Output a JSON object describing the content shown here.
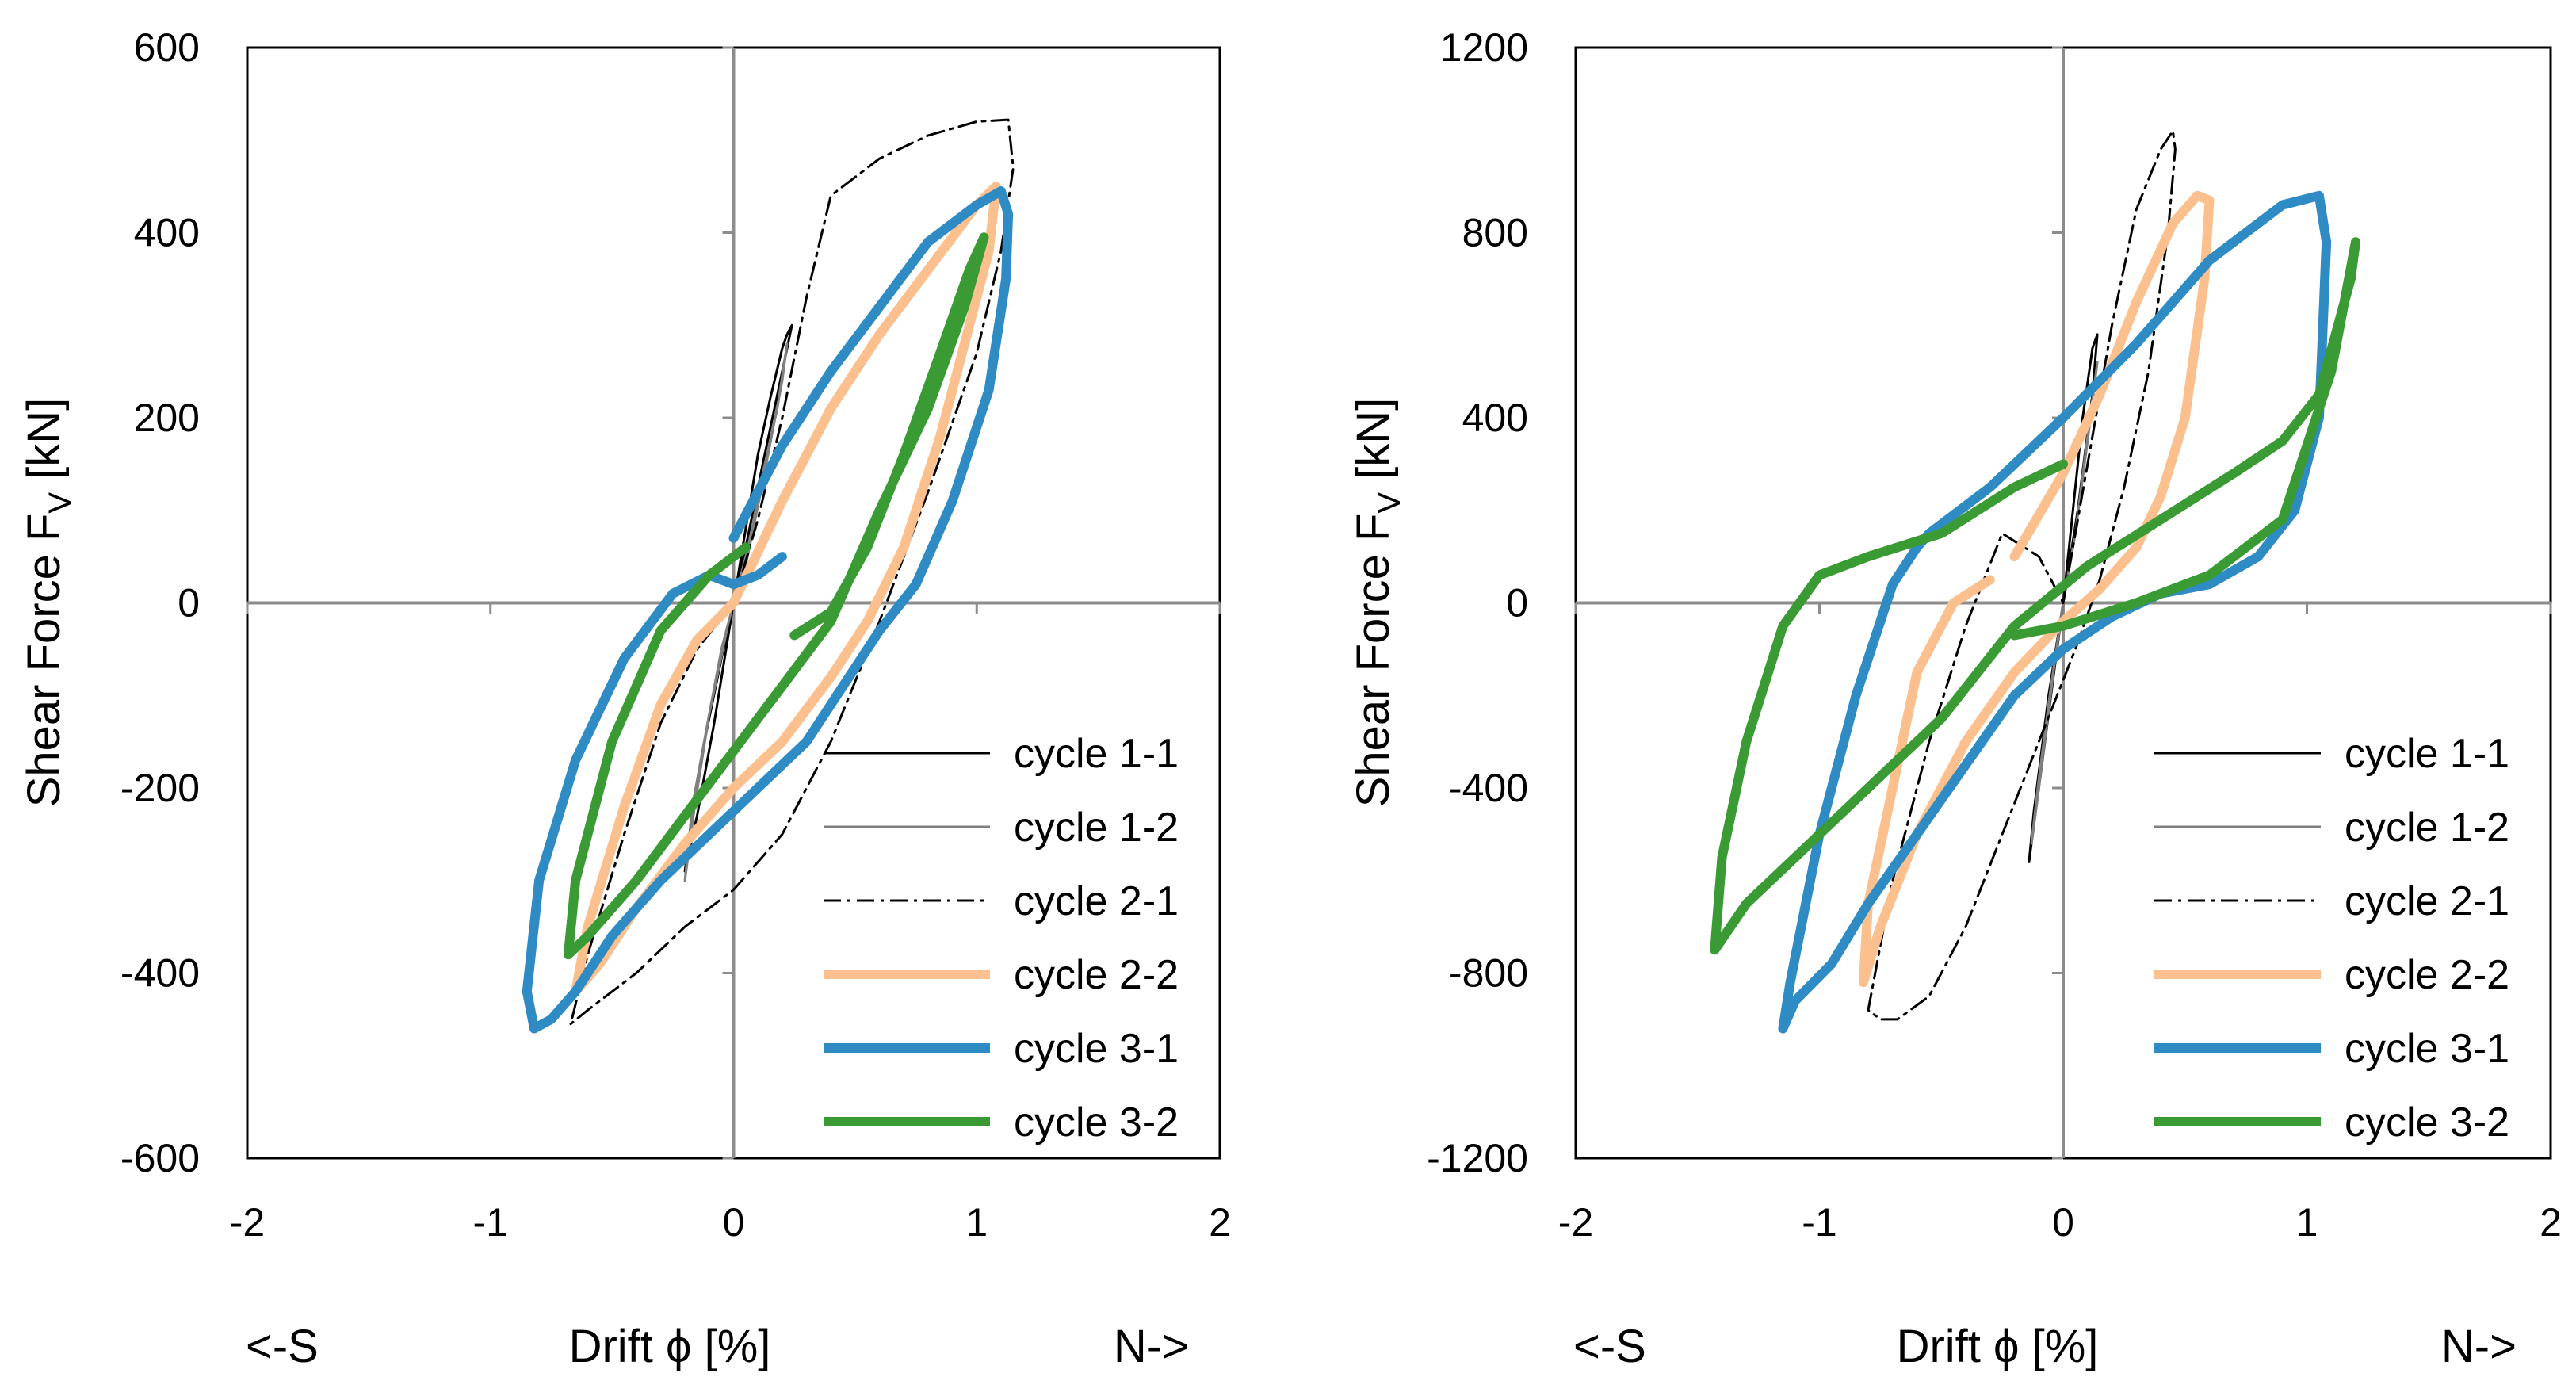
{
  "chart_data": [
    {
      "type": "line",
      "title": "",
      "xlabel": "Drift ϕ [%]",
      "ylabel": "Shear Force F",
      "ylabel_sub": "V",
      "ylabel_unit": " [kN]",
      "direction_left": "<-S",
      "direction_right": "N->",
      "xlim": [
        -2,
        2
      ],
      "ylim": [
        -600,
        600
      ],
      "xticks": [
        "-2",
        "-1",
        "0",
        "1",
        "2"
      ],
      "yticks": [
        "600",
        "400",
        "200",
        "0",
        "-200",
        "-400",
        "-600"
      ],
      "legend_position": "bottom-right",
      "series": [
        {
          "name": "cycle 1-1",
          "color": "#000000",
          "style": "solid-thin",
          "x": [
            0,
            0.05,
            0.1,
            0.15,
            0.2,
            0.22,
            0.24,
            0.2,
            0.12,
            0.05,
            0,
            -0.05,
            -0.12,
            -0.18,
            -0.2,
            -0.15,
            -0.08,
            0
          ],
          "y": [
            0,
            80,
            160,
            220,
            275,
            290,
            300,
            250,
            150,
            60,
            0,
            -60,
            -150,
            -250,
            -290,
            -230,
            -130,
            0
          ]
        },
        {
          "name": "cycle 1-2",
          "color": "#808080",
          "style": "solid-thin",
          "x": [
            0,
            0.06,
            0.12,
            0.18,
            0.22,
            0.2,
            0.12,
            0.05,
            0,
            -0.05,
            -0.1,
            -0.16,
            -0.2,
            -0.17,
            -0.1,
            -0.02,
            0
          ],
          "y": [
            0,
            60,
            140,
            210,
            280,
            240,
            130,
            40,
            0,
            -50,
            -120,
            -220,
            -300,
            -220,
            -120,
            -20,
            0
          ]
        },
        {
          "name": "cycle 2-1",
          "color": "#000000",
          "style": "dashdot-thin",
          "x": [
            0,
            0.1,
            0.2,
            0.3,
            0.4,
            0.6,
            0.8,
            1.0,
            1.13,
            1.15,
            1.1,
            1.0,
            0.8,
            0.6,
            0.4,
            0.2,
            0,
            -0.2,
            -0.4,
            -0.6,
            -0.67,
            -0.6,
            -0.45,
            -0.3,
            -0.15,
            0
          ],
          "y": [
            0,
            90,
            200,
            330,
            440,
            480,
            505,
            520,
            522,
            470,
            380,
            270,
            120,
            -20,
            -150,
            -250,
            -310,
            -350,
            -400,
            -440,
            -455,
            -380,
            -250,
            -130,
            -50,
            0
          ]
        },
        {
          "name": "cycle 2-2",
          "color": "#FBC08E",
          "style": "solid-thick",
          "x": [
            0,
            0.2,
            0.4,
            0.6,
            0.8,
            1.0,
            1.08,
            1.05,
            0.95,
            0.85,
            0.7,
            0.55,
            0.4,
            0.2,
            0,
            -0.2,
            -0.4,
            -0.55,
            -0.65,
            -0.6,
            -0.45,
            -0.3,
            -0.15,
            0
          ],
          "y": [
            0,
            110,
            210,
            290,
            360,
            430,
            450,
            380,
            280,
            180,
            60,
            -20,
            -80,
            -150,
            -200,
            -260,
            -330,
            -390,
            -420,
            -350,
            -220,
            -110,
            -40,
            0
          ]
        },
        {
          "name": "cycle 3-1",
          "color": "#2E8BC4",
          "style": "solid-thick",
          "x": [
            0,
            0.2,
            0.4,
            0.6,
            0.8,
            1.0,
            1.1,
            1.13,
            1.12,
            1.05,
            0.9,
            0.75,
            0.6,
            0.45,
            0.3,
            0.1,
            -0.1,
            -0.3,
            -0.5,
            -0.65,
            -0.75,
            -0.82,
            -0.85,
            -0.8,
            -0.65,
            -0.45,
            -0.25,
            -0.1,
            0,
            0.1,
            0.2
          ],
          "y": [
            70,
            170,
            250,
            320,
            390,
            430,
            445,
            420,
            350,
            230,
            110,
            20,
            -30,
            -90,
            -150,
            -200,
            -250,
            -300,
            -360,
            -420,
            -450,
            -460,
            -420,
            -300,
            -170,
            -60,
            10,
            30,
            20,
            30,
            50
          ]
        },
        {
          "name": "cycle 3-2",
          "color": "#3A9B34",
          "style": "solid-thick",
          "x": [
            0.25,
            0.4,
            0.55,
            0.7,
            0.85,
            0.97,
            1.03,
            0.95,
            0.8,
            0.6,
            0.4,
            0.2,
            0,
            -0.2,
            -0.4,
            -0.6,
            -0.68,
            -0.65,
            -0.5,
            -0.3,
            -0.1,
            0.05
          ],
          "y": [
            -35,
            -10,
            60,
            160,
            270,
            360,
            395,
            320,
            210,
            100,
            -20,
            -90,
            -160,
            -230,
            -300,
            -360,
            -380,
            -300,
            -150,
            -30,
            30,
            60
          ]
        }
      ]
    },
    {
      "type": "line",
      "title": "",
      "xlabel": "Drift ϕ [%]",
      "ylabel": "Shear Force F",
      "ylabel_sub": "V",
      "ylabel_unit": " [kN]",
      "direction_left": "<-S",
      "direction_right": "N->",
      "xlim": [
        -2,
        2
      ],
      "ylim": [
        -1200,
        1200
      ],
      "xticks": [
        "-2",
        "-1",
        "0",
        "1",
        "2"
      ],
      "yticks": [
        "1200",
        "800",
        "400",
        "0",
        "-400",
        "-800",
        "-1200"
      ],
      "legend_position": "bottom-right",
      "series": [
        {
          "name": "cycle 1-1",
          "color": "#000000",
          "style": "solid-thin",
          "x": [
            0,
            0.04,
            0.08,
            0.12,
            0.14,
            0.12,
            0.06,
            0,
            -0.05,
            -0.1,
            -0.14,
            -0.12,
            -0.06,
            0
          ],
          "y": [
            0,
            200,
            400,
            550,
            580,
            450,
            200,
            0,
            -200,
            -400,
            -560,
            -450,
            -200,
            0
          ]
        },
        {
          "name": "cycle 1-2",
          "color": "#808080",
          "style": "solid-thin",
          "x": [
            0,
            0.05,
            0.1,
            0.14,
            0.11,
            0.05,
            0,
            -0.05,
            -0.1,
            -0.13,
            -0.1,
            -0.04,
            0
          ],
          "y": [
            0,
            150,
            350,
            520,
            400,
            150,
            0,
            -180,
            -380,
            -520,
            -400,
            -150,
            0
          ]
        },
        {
          "name": "cycle 2-1",
          "color": "#000000",
          "style": "dashdot-thin",
          "x": [
            0,
            0.1,
            0.2,
            0.3,
            0.4,
            0.45,
            0.46,
            0.43,
            0.35,
            0.25,
            0.15,
            0.05,
            -0.1,
            -0.25,
            -0.4,
            -0.55,
            -0.68,
            -0.75,
            -0.8,
            -0.7,
            -0.55,
            -0.4,
            -0.25,
            -0.1,
            0
          ],
          "y": [
            0,
            300,
            600,
            850,
            980,
            1020,
            980,
            800,
            500,
            250,
            50,
            -100,
            -300,
            -500,
            -700,
            -850,
            -900,
            -900,
            -880,
            -600,
            -300,
            -50,
            150,
            100,
            0
          ]
        },
        {
          "name": "cycle 2-2",
          "color": "#FBC08E",
          "style": "solid-thick",
          "x": [
            -0.2,
            0,
            0.15,
            0.3,
            0.45,
            0.55,
            0.6,
            0.58,
            0.5,
            0.4,
            0.3,
            0.15,
            0,
            -0.2,
            -0.4,
            -0.6,
            -0.75,
            -0.82,
            -0.8,
            -0.7,
            -0.6,
            -0.45,
            -0.3
          ],
          "y": [
            100,
            280,
            450,
            650,
            820,
            880,
            870,
            700,
            400,
            230,
            120,
            30,
            -40,
            -150,
            -300,
            -500,
            -700,
            -820,
            -650,
            -400,
            -150,
            0,
            50
          ]
        },
        {
          "name": "cycle 3-1",
          "color": "#2E8BC4",
          "style": "solid-thick",
          "x": [
            -0.55,
            -0.3,
            0,
            0.3,
            0.6,
            0.9,
            1.05,
            1.08,
            1.05,
            0.95,
            0.8,
            0.6,
            0.4,
            0.2,
            0,
            -0.2,
            -0.4,
            -0.6,
            -0.8,
            -0.95,
            -1.1,
            -1.15,
            -1.12,
            -1.0,
            -0.85,
            -0.7,
            -0.6,
            -0.55
          ],
          "y": [
            150,
            250,
            400,
            560,
            740,
            860,
            880,
            780,
            400,
            200,
            100,
            40,
            20,
            -30,
            -100,
            -200,
            -350,
            -500,
            -650,
            -780,
            -860,
            -920,
            -820,
            -500,
            -200,
            40,
            120,
            150
          ]
        },
        {
          "name": "cycle 3-2",
          "color": "#3A9B34",
          "style": "solid-thick",
          "x": [
            -0.2,
            0,
            0.3,
            0.6,
            0.9,
            1.1,
            1.2,
            1.18,
            1.05,
            0.9,
            0.7,
            0.4,
            0.1,
            -0.2,
            -0.5,
            -0.8,
            -1.1,
            -1.3,
            -1.43,
            -1.4,
            -1.3,
            -1.15,
            -1.0,
            -0.8,
            -0.5,
            -0.2,
            0
          ],
          "y": [
            -70,
            -50,
            0,
            60,
            180,
            500,
            780,
            700,
            450,
            350,
            280,
            180,
            80,
            -50,
            -250,
            -400,
            -550,
            -650,
            -750,
            -550,
            -300,
            -50,
            60,
            100,
            150,
            250,
            300
          ]
        }
      ]
    }
  ]
}
